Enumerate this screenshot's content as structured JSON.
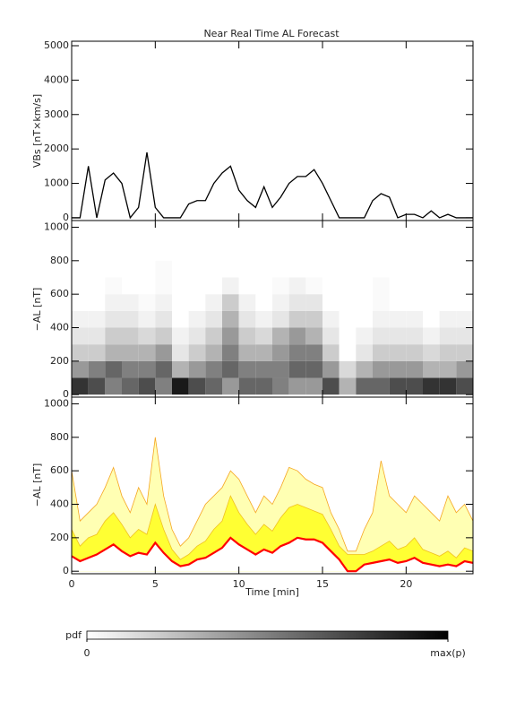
{
  "chart_data": [
    {
      "type": "line",
      "title": "Near Real Time AL Forecast",
      "ylabel": "VBs [nT×km/s]",
      "xlim": [
        0,
        24
      ],
      "ylim": [
        -80,
        5130
      ],
      "yticks": [
        0,
        1000,
        2000,
        3000,
        4000,
        5000
      ],
      "x": [
        0,
        0.5,
        1,
        1.5,
        2,
        2.5,
        3,
        3.5,
        4,
        4.5,
        5,
        5.5,
        6,
        6.5,
        7,
        7.5,
        8,
        8.5,
        9,
        9.5,
        10,
        10.5,
        11,
        11.5,
        12,
        12.5,
        13,
        13.5,
        14,
        14.5,
        15,
        15.5,
        16,
        16.5,
        17,
        17.5,
        18,
        18.5,
        19,
        19.5,
        20,
        20.5,
        21,
        21.5,
        22,
        22.5,
        23,
        23.5,
        24
      ],
      "series": [
        {
          "color": "#000000",
          "values": [
            0,
            0,
            1500,
            0,
            1100,
            1300,
            1000,
            0,
            300,
            1900,
            300,
            0,
            0,
            0,
            400,
            500,
            500,
            1000,
            1300,
            1500,
            800,
            500,
            300,
            900,
            300,
            600,
            1000,
            1200,
            1200,
            1400,
            1000,
            500,
            0,
            0,
            0,
            0,
            500,
            700,
            600,
            0,
            100,
            100,
            0,
            200,
            0,
            100,
            0,
            0,
            0
          ]
        }
      ]
    },
    {
      "type": "heatmap",
      "ylabel": "−AL [nT]",
      "xlim": [
        0,
        24
      ],
      "ylim": [
        -15,
        1040
      ],
      "yticks": [
        0,
        200,
        400,
        600,
        800,
        1000
      ],
      "bins": [
        0,
        1,
        2,
        3,
        4,
        5,
        6,
        7,
        8,
        9,
        10,
        11,
        12,
        13,
        14,
        15,
        16,
        17,
        18,
        19,
        20,
        21,
        22,
        23,
        24
      ],
      "ybins": [
        0,
        100,
        200,
        300,
        400,
        500,
        600,
        700,
        800,
        900,
        1000
      ],
      "z": [
        [
          0.8,
          0.4,
          0.2,
          0.1,
          0.05,
          0,
          0,
          0,
          0,
          0
        ],
        [
          0.7,
          0.5,
          0.2,
          0.1,
          0.05,
          0,
          0,
          0,
          0,
          0
        ],
        [
          0.5,
          0.6,
          0.3,
          0.2,
          0.1,
          0.05,
          0.02,
          0,
          0,
          0
        ],
        [
          0.6,
          0.5,
          0.3,
          0.2,
          0.1,
          0.05,
          0,
          0,
          0,
          0
        ],
        [
          0.7,
          0.5,
          0.3,
          0.15,
          0.05,
          0.02,
          0,
          0,
          0,
          0
        ],
        [
          0.5,
          0.6,
          0.4,
          0.2,
          0.1,
          0.05,
          0.02,
          0.02,
          0,
          0
        ],
        [
          0.9,
          0.3,
          0.1,
          0.05,
          0,
          0,
          0,
          0,
          0,
          0
        ],
        [
          0.7,
          0.4,
          0.2,
          0.1,
          0.05,
          0,
          0,
          0,
          0,
          0
        ],
        [
          0.6,
          0.5,
          0.3,
          0.2,
          0.1,
          0.05,
          0,
          0,
          0,
          0
        ],
        [
          0.4,
          0.6,
          0.5,
          0.4,
          0.3,
          0.2,
          0.05,
          0,
          0,
          0
        ],
        [
          0.6,
          0.5,
          0.3,
          0.2,
          0.1,
          0.05,
          0,
          0,
          0,
          0
        ],
        [
          0.6,
          0.5,
          0.3,
          0.15,
          0.05,
          0,
          0,
          0,
          0,
          0
        ],
        [
          0.5,
          0.5,
          0.4,
          0.3,
          0.1,
          0.05,
          0.02,
          0,
          0,
          0
        ],
        [
          0.4,
          0.6,
          0.5,
          0.4,
          0.2,
          0.1,
          0.05,
          0,
          0,
          0
        ],
        [
          0.4,
          0.6,
          0.5,
          0.3,
          0.2,
          0.1,
          0.02,
          0,
          0,
          0
        ],
        [
          0.7,
          0.4,
          0.2,
          0.1,
          0.05,
          0,
          0,
          0,
          0,
          0
        ],
        [
          0.3,
          0.15,
          0,
          0,
          0,
          0,
          0,
          0,
          0,
          0
        ],
        [
          0.6,
          0.3,
          0.1,
          0.05,
          0,
          0,
          0,
          0,
          0,
          0
        ],
        [
          0.6,
          0.4,
          0.2,
          0.1,
          0.05,
          0.02,
          0.02,
          0,
          0,
          0
        ],
        [
          0.7,
          0.4,
          0.2,
          0.1,
          0.05,
          0,
          0,
          0,
          0,
          0
        ],
        [
          0.7,
          0.4,
          0.2,
          0.1,
          0.05,
          0,
          0,
          0,
          0,
          0
        ],
        [
          0.8,
          0.3,
          0.15,
          0.05,
          0,
          0,
          0,
          0,
          0,
          0
        ],
        [
          0.8,
          0.3,
          0.2,
          0.1,
          0.05,
          0,
          0,
          0,
          0,
          0
        ],
        [
          0.7,
          0.4,
          0.2,
          0.1,
          0.05,
          0,
          0,
          0,
          0,
          0
        ]
      ],
      "colorbar": {
        "label": "pdf",
        "zlim": [
          0,
          1
        ],
        "ticks": [
          0,
          {
            "value": 1,
            "label": "max(p)"
          }
        ]
      }
    },
    {
      "type": "area",
      "ylabel": "−AL [nT]",
      "xlabel": "Time [min]",
      "xlim": [
        0,
        24
      ],
      "ylim": [
        -15,
        1040
      ],
      "yticks": [
        0,
        200,
        400,
        600,
        800,
        1000
      ],
      "xticks": [
        0,
        5,
        10,
        15,
        20
      ],
      "x": [
        0,
        0.5,
        1,
        1.5,
        2,
        2.5,
        3,
        3.5,
        4,
        4.5,
        5,
        5.5,
        6,
        6.5,
        7,
        7.5,
        8,
        8.5,
        9,
        9.5,
        10,
        10.5,
        11,
        11.5,
        12,
        12.5,
        13,
        13.5,
        14,
        14.5,
        15,
        15.5,
        16,
        16.5,
        17,
        17.5,
        18,
        18.5,
        19,
        19.5,
        20,
        20.5,
        21,
        21.5,
        22,
        22.5,
        23,
        23.5,
        24
      ],
      "series": [
        {
          "color": "#f5a623",
          "fill": "#ffffb3",
          "values": [
            600,
            300,
            350,
            400,
            500,
            620,
            450,
            350,
            500,
            400,
            800,
            450,
            250,
            150,
            200,
            300,
            400,
            450,
            500,
            600,
            550,
            450,
            350,
            450,
            400,
            500,
            620,
            600,
            550,
            520,
            500,
            350,
            250,
            120,
            120,
            250,
            350,
            660,
            450,
            400,
            350,
            450,
            400,
            350,
            300,
            450,
            350,
            400,
            300
          ]
        },
        {
          "color": "#f0c020",
          "fill": "#ffff33",
          "values": [
            250,
            150,
            200,
            220,
            300,
            350,
            280,
            200,
            250,
            220,
            400,
            250,
            130,
            70,
            100,
            150,
            180,
            250,
            300,
            450,
            350,
            280,
            220,
            280,
            240,
            320,
            380,
            400,
            380,
            360,
            340,
            250,
            150,
            100,
            100,
            100,
            120,
            150,
            180,
            130,
            150,
            200,
            130,
            110,
            90,
            120,
            80,
            140,
            120
          ]
        },
        {
          "color": "#ff0000",
          "fill": "#ffffff",
          "values": [
            90,
            60,
            80,
            100,
            130,
            160,
            120,
            90,
            110,
            100,
            170,
            110,
            60,
            30,
            40,
            70,
            80,
            110,
            140,
            200,
            160,
            130,
            100,
            130,
            110,
            150,
            170,
            200,
            190,
            190,
            170,
            120,
            70,
            0,
            0,
            40,
            50,
            60,
            70,
            50,
            60,
            80,
            50,
            40,
            30,
            40,
            30,
            60,
            50
          ]
        }
      ]
    }
  ]
}
